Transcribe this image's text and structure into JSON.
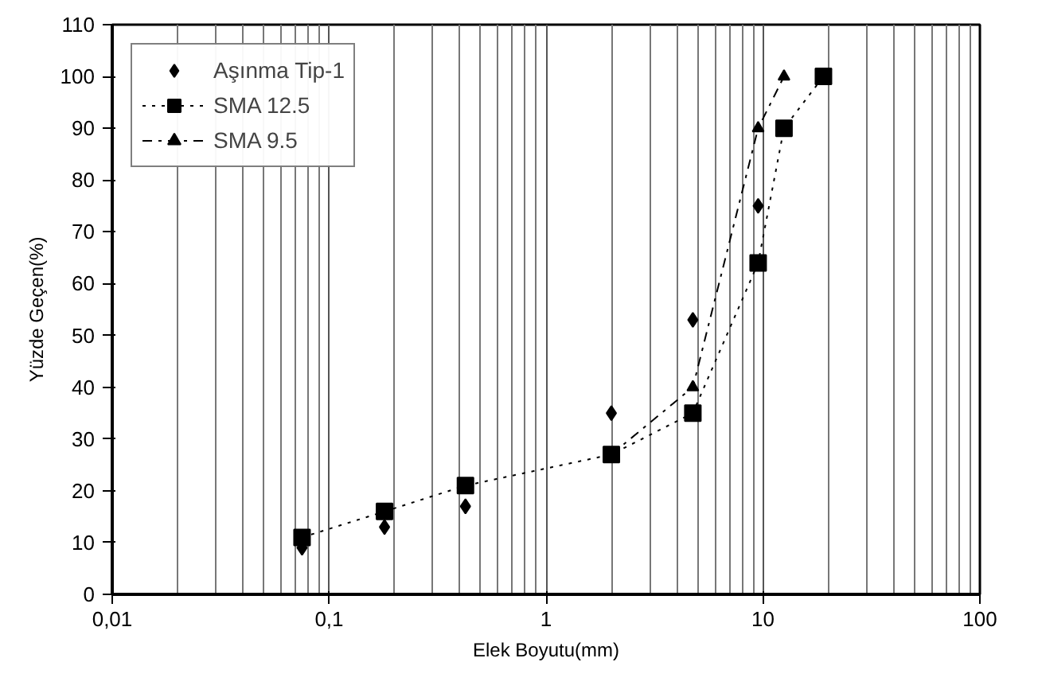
{
  "chart_data": {
    "type": "line",
    "xlabel": "Elek Boyutu(mm)",
    "ylabel": "Yüzde Geçen(%)",
    "log": "x",
    "xlim": [
      0.01,
      100
    ],
    "xticks": [
      {
        "value": 0.01,
        "label": "0,01"
      },
      {
        "value": 0.1,
        "label": "0,1"
      },
      1,
      10,
      100
    ],
    "ylim": [
      0,
      110
    ],
    "yticks": [
      0,
      10,
      20,
      30,
      40,
      50,
      60,
      70,
      80,
      90,
      100,
      110
    ],
    "grid": "x",
    "legend": "top left",
    "series": [
      {
        "name": "Aşınma Tip-1",
        "type": "scatter",
        "marker": "diamond",
        "color": "#000000",
        "x": [
          0.075,
          0.18,
          0.425,
          2,
          4.75,
          9.5
        ],
        "values": [
          9,
          13,
          17,
          35,
          53,
          75
        ]
      },
      {
        "name": "SMA 12.5",
        "marker": "square",
        "line_style": "dotted",
        "color": "#000000",
        "x": [
          0.075,
          0.18,
          0.425,
          2,
          4.75,
          9.5,
          12.5,
          19
        ],
        "values": [
          11,
          16,
          21,
          27,
          35,
          64,
          90,
          100
        ]
      },
      {
        "name": "SMA 9.5",
        "marker": "triangle",
        "line_style": "dashed",
        "color": "#000000",
        "x": [
          2,
          4.75,
          9.5,
          12.5
        ],
        "values": [
          27,
          40,
          90,
          100
        ]
      }
    ]
  }
}
